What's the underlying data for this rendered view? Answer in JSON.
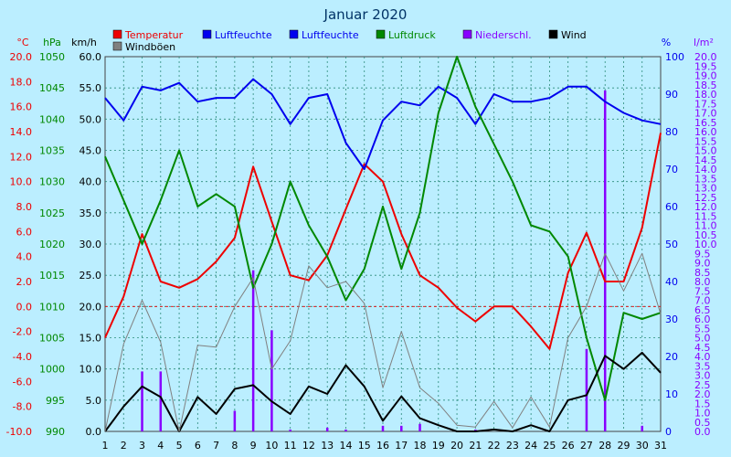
{
  "chart_data": {
    "type": "line",
    "title": "Januar 2020",
    "x": [
      1,
      2,
      3,
      4,
      5,
      6,
      7,
      8,
      9,
      10,
      11,
      12,
      13,
      14,
      15,
      16,
      17,
      18,
      19,
      20,
      21,
      22,
      23,
      24,
      25,
      26,
      27,
      28,
      29,
      30,
      31
    ],
    "axes": {
      "temp": {
        "unit": "°C",
        "min": -10,
        "max": 20,
        "step": 2,
        "ticks": [
          "-10.0",
          "-8.0",
          "-6.0",
          "-4.0",
          "-2.0",
          "0.0",
          "2.0",
          "4.0",
          "6.0",
          "8.0",
          "10.0",
          "12.0",
          "14.0",
          "16.0",
          "18.0",
          "20.0"
        ]
      },
      "pressure": {
        "unit": "hPa",
        "min": 990,
        "max": 1050,
        "step": 5,
        "ticks": [
          "990",
          "995",
          "1000",
          "1005",
          "1010",
          "1015",
          "1020",
          "1025",
          "1030",
          "1035",
          "1040",
          "1045",
          "1050"
        ]
      },
      "wind": {
        "unit": "km/h",
        "min": 0,
        "max": 60,
        "step": 5,
        "ticks": [
          "0.0",
          "5.0",
          "10.0",
          "15.0",
          "20.0",
          "25.0",
          "30.0",
          "35.0",
          "40.0",
          "45.0",
          "50.0",
          "55.0",
          "60.0"
        ]
      },
      "humidity": {
        "unit": "%",
        "min": 0,
        "max": 100,
        "step": 10,
        "ticks": [
          "0",
          "10",
          "20",
          "30",
          "40",
          "50",
          "60",
          "70",
          "80",
          "90",
          "100"
        ]
      },
      "precip": {
        "unit": "l/m²",
        "min": 0,
        "max": 20,
        "step": 0.5,
        "ticks": [
          "0.0",
          "0.5",
          "1.0",
          "1.5",
          "2.0",
          "2.5",
          "3.0",
          "3.5",
          "4.0",
          "4.5",
          "5.0",
          "5.5",
          "6.0",
          "6.5",
          "7.0",
          "7.5",
          "8.0",
          "8.5",
          "9.0",
          "9.5",
          "10.0",
          "10.5",
          "11.0",
          "11.5",
          "12.0",
          "12.5",
          "13.0",
          "13.5",
          "14.0",
          "14.5",
          "15.0",
          "15.5",
          "16.0",
          "16.5",
          "17.0",
          "17.5",
          "18.0",
          "18.5",
          "19.0",
          "19.5",
          "20.0"
        ]
      }
    },
    "legend": [
      {
        "label": "Temperatur",
        "color": "#ee0000"
      },
      {
        "label": "Luftfeuchte",
        "color": "#0000ee"
      },
      {
        "label": "Luftfeuchte",
        "color": "#0000ee"
      },
      {
        "label": "Luftdruck",
        "color": "#008800"
      },
      {
        "label": "Niederschl.",
        "color": "#8800ff"
      },
      {
        "label": "Wind",
        "color": "#000000"
      },
      {
        "label": "Windböen",
        "color": "#808080"
      }
    ],
    "series": [
      {
        "name": "Temperatur",
        "axis": "temp",
        "color": "#ee0000",
        "values": [
          -2.5,
          0.8,
          5.8,
          2.0,
          1.5,
          2.2,
          3.6,
          5.5,
          11.2,
          6.8,
          2.5,
          2.1,
          4.1,
          7.8,
          11.4,
          10.0,
          5.8,
          2.5,
          1.5,
          -0.1,
          -1.2,
          0.0,
          0.0,
          -1.6,
          -3.4,
          2.7,
          5.9,
          2.0,
          2.0,
          6.3,
          13.9
        ]
      },
      {
        "name": "Luftfeuchte",
        "axis": "humidity",
        "color": "#0000ee",
        "values": [
          89,
          83,
          92,
          91,
          93,
          88,
          89,
          89,
          94,
          90,
          82,
          89,
          90,
          77,
          70,
          83,
          88,
          87,
          92,
          89,
          82,
          90,
          88,
          88,
          89,
          92,
          92,
          88,
          85,
          83,
          82
        ]
      },
      {
        "name": "Luftdruck",
        "axis": "pressure",
        "color": "#008800",
        "values": [
          1034,
          1027,
          1020,
          1027,
          1035,
          1026,
          1028,
          1026,
          1013,
          1020,
          1030,
          1023,
          1018,
          1011,
          1016,
          1026,
          1016,
          1025,
          1041,
          1050,
          1042,
          1036,
          1030,
          1023,
          1022,
          1018,
          1005,
          995,
          1009,
          1008,
          1009
        ]
      },
      {
        "name": "Niederschl.",
        "axis": "precip",
        "color": "#8800ff",
        "style": "bar",
        "values": [
          0,
          0,
          3.2,
          3.2,
          0,
          0,
          0,
          1.1,
          8.6,
          5.4,
          0.1,
          0,
          0.2,
          0.1,
          0,
          0.3,
          0.3,
          0.4,
          0,
          0,
          0.1,
          0,
          0,
          0,
          0,
          0,
          4.4,
          18.2,
          0,
          0.3,
          0
        ]
      },
      {
        "name": "Wind",
        "axis": "wind",
        "color": "#000000",
        "values": [
          0,
          4.0,
          7.2,
          5.5,
          0,
          5.5,
          2.8,
          6.8,
          7.4,
          4.8,
          2.8,
          7.2,
          6.0,
          10.6,
          7.2,
          1.7,
          5.6,
          2.1,
          1.0,
          0,
          0,
          0.3,
          0,
          1.0,
          0,
          5.0,
          5.8,
          12.1,
          10.0,
          12.6,
          9.4
        ]
      },
      {
        "name": "Windböen",
        "axis": "wind",
        "color": "#808080",
        "values": [
          0,
          14.0,
          21.0,
          14.3,
          0,
          13.8,
          13.5,
          20.0,
          24.6,
          10.0,
          14.5,
          26.5,
          23.0,
          24.0,
          20.5,
          7.0,
          16.0,
          7.0,
          4.5,
          1.0,
          0.7,
          4.8,
          0.6,
          5.5,
          0.7,
          15.0,
          20.0,
          28.5,
          22.5,
          28.5,
          18.8
        ]
      }
    ],
    "grid": true,
    "zero_line": true
  }
}
